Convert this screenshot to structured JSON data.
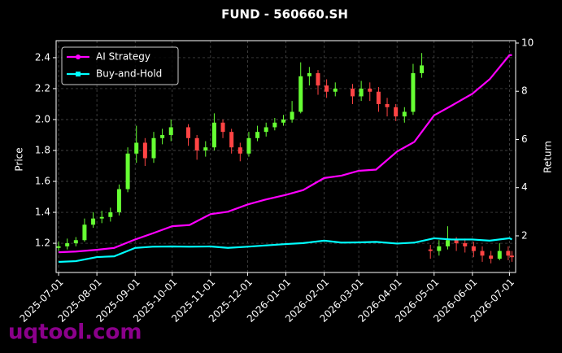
{
  "chart_data": {
    "type": "candlestick",
    "title": "FUND - 560660.SH",
    "ylabel": "Price",
    "y2label": "Return",
    "watermark": "uqtool.com",
    "x": [
      "2025-07-01",
      "2025-07-08",
      "2025-07-15",
      "2025-07-22",
      "2025-07-29",
      "2025-08-05",
      "2025-08-12",
      "2025-08-19",
      "2025-08-26",
      "2025-09-02",
      "2025-09-09",
      "2025-09-16",
      "2025-09-23",
      "2025-09-30",
      "2025-10-14",
      "2025-10-21",
      "2025-10-28",
      "2025-11-04",
      "2025-11-11",
      "2025-11-18",
      "2025-11-25",
      "2025-12-02",
      "2025-12-09",
      "2025-12-16",
      "2025-12-23",
      "2025-12-30",
      "2026-01-06",
      "2026-01-13",
      "2026-01-20",
      "2026-01-27",
      "2026-02-03",
      "2026-02-10",
      "2026-02-24",
      "2026-03-03",
      "2026-03-10",
      "2026-03-17",
      "2026-03-24",
      "2026-03-31",
      "2026-04-07",
      "2026-04-14",
      "2026-04-21",
      "2026-04-28",
      "2026-05-05",
      "2026-05-12",
      "2026-05-19",
      "2026-05-26",
      "2026-06-02",
      "2026-06-09",
      "2026-06-16",
      "2026-06-23",
      "2026-06-30",
      "2026-07-03"
    ],
    "open": [
      1.17,
      1.18,
      1.2,
      1.22,
      1.32,
      1.36,
      1.37,
      1.4,
      1.55,
      1.78,
      1.85,
      1.75,
      1.88,
      1.9,
      1.95,
      1.88,
      1.8,
      1.82,
      1.98,
      1.92,
      1.82,
      1.78,
      1.88,
      1.92,
      1.95,
      1.98,
      2.0,
      2.05,
      2.28,
      2.3,
      2.22,
      2.18,
      2.2,
      2.15,
      2.2,
      2.18,
      2.1,
      2.08,
      2.02,
      2.05,
      2.3,
      1.16,
      1.15,
      1.18,
      1.22,
      1.2,
      1.18,
      1.15,
      1.12,
      1.1,
      1.15,
      1.12
    ],
    "high": [
      1.21,
      1.23,
      1.24,
      1.36,
      1.4,
      1.41,
      1.43,
      1.58,
      1.82,
      1.96,
      1.88,
      1.92,
      1.94,
      2.0,
      1.97,
      1.9,
      1.86,
      2.04,
      2.0,
      1.94,
      1.85,
      1.92,
      1.96,
      1.98,
      2.01,
      2.03,
      2.12,
      2.37,
      2.34,
      2.32,
      2.26,
      2.24,
      2.23,
      2.25,
      2.24,
      2.21,
      2.14,
      2.1,
      2.08,
      2.36,
      2.43,
      1.19,
      1.22,
      1.31,
      1.24,
      1.23,
      1.21,
      1.18,
      1.15,
      1.2,
      1.18,
      1.15
    ],
    "low": [
      1.15,
      1.16,
      1.18,
      1.21,
      1.3,
      1.33,
      1.34,
      1.38,
      1.53,
      1.72,
      1.7,
      1.72,
      1.84,
      1.86,
      1.83,
      1.74,
      1.76,
      1.8,
      1.88,
      1.78,
      1.73,
      1.76,
      1.86,
      1.89,
      1.93,
      1.96,
      1.98,
      2.04,
      2.22,
      2.16,
      2.14,
      2.15,
      2.1,
      2.12,
      2.12,
      2.05,
      2.02,
      1.99,
      1.98,
      2.03,
      2.27,
      1.1,
      1.12,
      1.16,
      1.15,
      1.14,
      1.11,
      1.08,
      1.07,
      1.09,
      1.09,
      1.08
    ],
    "close": [
      1.18,
      1.2,
      1.22,
      1.32,
      1.36,
      1.37,
      1.4,
      1.55,
      1.78,
      1.85,
      1.75,
      1.88,
      1.9,
      1.95,
      1.88,
      1.8,
      1.82,
      1.98,
      1.92,
      1.82,
      1.78,
      1.88,
      1.92,
      1.95,
      1.98,
      2.0,
      2.05,
      2.28,
      2.3,
      2.22,
      2.18,
      2.2,
      2.15,
      2.2,
      2.18,
      2.1,
      2.08,
      2.02,
      2.05,
      2.3,
      2.35,
      1.15,
      1.18,
      1.22,
      1.2,
      1.18,
      1.15,
      1.12,
      1.1,
      1.15,
      1.12,
      1.11
    ],
    "up_color": "#66ff33",
    "down_color": "#ff4444",
    "lines": {
      "x": [
        "2025-07-01",
        "2025-07-15",
        "2025-08-01",
        "2025-08-15",
        "2025-09-01",
        "2025-09-15",
        "2025-10-01",
        "2025-10-15",
        "2025-11-01",
        "2025-11-15",
        "2025-12-01",
        "2025-12-15",
        "2026-01-01",
        "2026-01-15",
        "2026-02-01",
        "2026-02-15",
        "2026-03-01",
        "2026-03-15",
        "2026-04-01",
        "2026-04-15",
        "2026-05-01",
        "2026-05-15",
        "2026-06-01",
        "2026-06-15",
        "2026-07-01",
        "2026-07-03"
      ],
      "series": [
        {
          "name": "AI Strategy",
          "color": "#ff00ff",
          "axis": "y2",
          "values": [
            1.32,
            1.35,
            1.42,
            1.5,
            1.85,
            2.1,
            2.4,
            2.45,
            2.9,
            3.0,
            3.3,
            3.5,
            3.7,
            3.9,
            4.4,
            4.5,
            4.7,
            4.75,
            5.5,
            5.9,
            7.0,
            7.4,
            7.9,
            8.5,
            9.5,
            9.5
          ]
        },
        {
          "name": "Buy-and-Hold",
          "color": "#00ffff",
          "axis": "y2",
          "values": [
            0.92,
            0.95,
            1.12,
            1.15,
            1.5,
            1.55,
            1.56,
            1.55,
            1.56,
            1.5,
            1.55,
            1.6,
            1.66,
            1.7,
            1.8,
            1.72,
            1.73,
            1.75,
            1.68,
            1.72,
            1.9,
            1.85,
            1.85,
            1.8,
            1.9,
            1.85
          ]
        }
      ]
    },
    "xlim": [
      "2025-06-29",
      "2026-07-06"
    ],
    "xticks": [
      "2025-07-01",
      "2025-08-01",
      "2025-09-01",
      "2025-10-01",
      "2025-11-01",
      "2025-12-01",
      "2026-01-01",
      "2026-02-01",
      "2026-03-01",
      "2026-04-01",
      "2026-05-01",
      "2026-06-01",
      "2026-07-01"
    ],
    "ylim": [
      1.011,
      2.51
    ],
    "yticks": [
      1.2,
      1.4,
      1.6,
      1.8,
      {
        "value": 2,
        "label": "2.0"
      },
      2.2,
      2.4
    ],
    "y2lim": [
      0.48,
      10.1
    ],
    "y2ticks": [
      2,
      4,
      6,
      8,
      10
    ],
    "grid": true,
    "legend": "upper left"
  }
}
